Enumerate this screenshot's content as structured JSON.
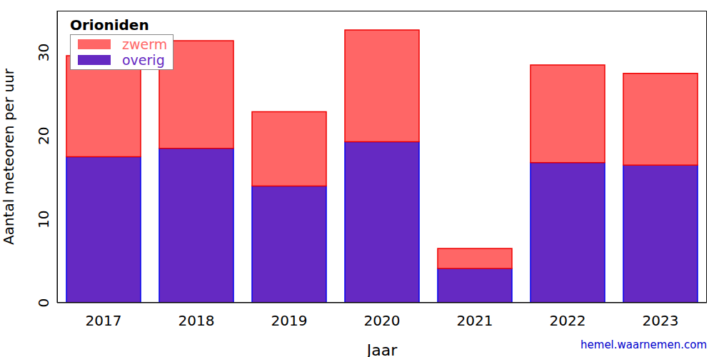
{
  "chart_data": {
    "type": "bar",
    "title": "Orioniden",
    "x_label": "Jaar",
    "y_label": "Aantal meteoren per uur",
    "annotation": "hemel.waarnemen.com",
    "categories": [
      "2017",
      "2018",
      "2019",
      "2020",
      "2021",
      "2022",
      "2023"
    ],
    "series": [
      {
        "name": "overig",
        "color": "#6529c2",
        "values": [
          17.5,
          18.5,
          14.0,
          19.3,
          4.1,
          16.8,
          16.5
        ]
      },
      {
        "name": "zwerm",
        "color": "#ff6666",
        "values": [
          12.1,
          12.9,
          8.9,
          13.4,
          2.4,
          11.7,
          11.0
        ]
      }
    ],
    "stacked": true,
    "legend": "upper left",
    "ylim": [
      0,
      35
    ],
    "yticks": [
      0,
      10,
      20,
      30
    ],
    "grid": false
  }
}
